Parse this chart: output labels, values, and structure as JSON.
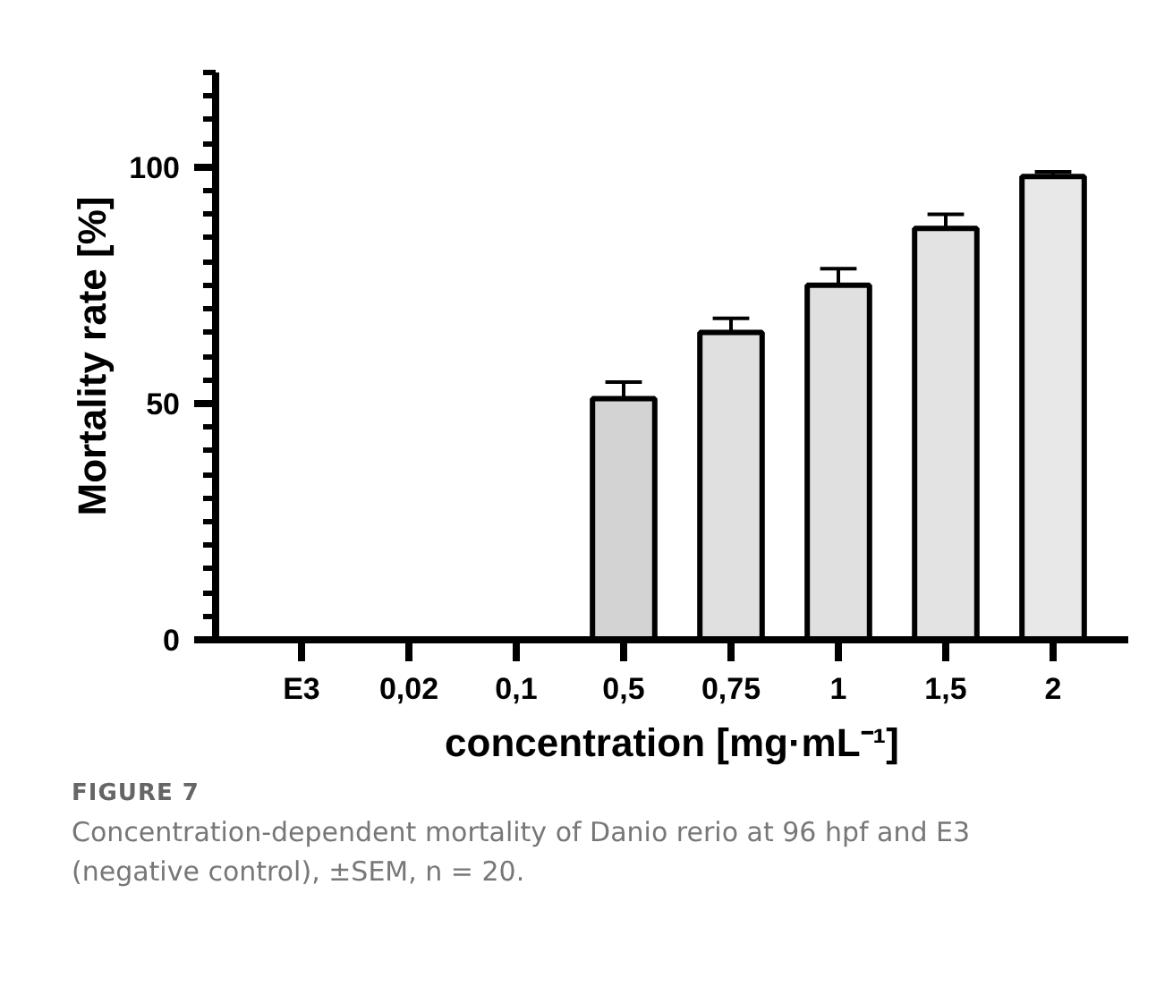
{
  "chart_data": {
    "type": "bar",
    "xlabel": "concentration [mg·mL⁻¹]",
    "ylabel": "Mortality rate [%]",
    "categories": [
      "E3",
      "0,02",
      "0,1",
      "0,5",
      "0,75",
      "1",
      "1,5",
      "2"
    ],
    "values": [
      0,
      0,
      0,
      51,
      65,
      75,
      87,
      98
    ],
    "errors": [
      null,
      null,
      null,
      [
        51,
        54.5
      ],
      [
        65,
        68
      ],
      [
        75,
        78.5
      ],
      [
        87,
        90
      ],
      [
        98,
        99
      ]
    ],
    "colors": [
      null,
      null,
      null,
      "#d3d3d3",
      "#e0e0e0",
      "#e0e0e0",
      "#e3e3e3",
      "#e8e8e8"
    ],
    "ylim": [
      0,
      120
    ],
    "yticks": [
      0,
      {
        "value": 5,
        "label": null
      },
      {
        "value": 10,
        "label": null
      },
      {
        "value": 15,
        "label": null
      },
      {
        "value": 20,
        "label": null
      },
      {
        "value": 25,
        "label": null
      },
      {
        "value": 30,
        "label": null
      },
      {
        "value": 35,
        "label": null
      },
      {
        "value": 40,
        "label": null
      },
      {
        "value": 45,
        "label": null
      },
      50,
      {
        "value": 55,
        "label": null
      },
      {
        "value": 60,
        "label": null
      },
      {
        "value": 65,
        "label": null
      },
      {
        "value": 70,
        "label": null
      },
      {
        "value": 75,
        "label": null
      },
      {
        "value": 80,
        "label": null
      },
      {
        "value": 85,
        "label": null
      },
      {
        "value": 90,
        "label": null
      },
      {
        "value": 95,
        "label": null
      },
      100,
      {
        "value": 105,
        "label": null
      },
      {
        "value": 110,
        "label": null
      },
      {
        "value": 115,
        "label": null
      },
      {
        "value": 120,
        "label": null
      }
    ],
    "grid": false,
    "annotations": [
      "FIGURE 7",
      "Concentration-dependent mortality of Danio rerio at 96 hpf and E3 (negative control), ±SEM, n = 20."
    ]
  }
}
